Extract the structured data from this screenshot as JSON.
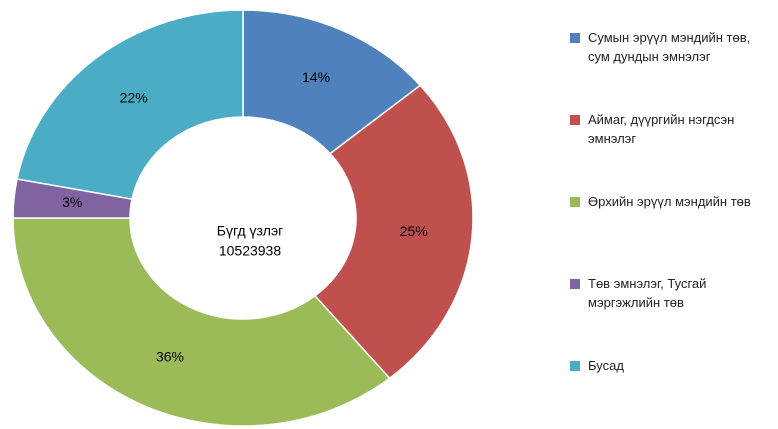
{
  "chart_data": {
    "type": "donut",
    "categories": [
      "Сумын эрүүл мэндийн төв, сум дундын эмнэлэг",
      "Аймаг, дүүргийн нэгдсэн эмнэлэг",
      "Өрхийн эрүүл мэндийн төв",
      "Төв эмнэлэг, Тусгай мэргэжлийн төв",
      "Бусад"
    ],
    "values": [
      14,
      25,
      36,
      3,
      22
    ],
    "value_labels": [
      "14%",
      "25%",
      "36%",
      "3%",
      "22%"
    ],
    "colors": [
      "#4f81bd",
      "#c0504d",
      "#9bbb59",
      "#8064a2",
      "#4bacc6"
    ],
    "center_label": "Бүгд үзлэг",
    "total": 10523938,
    "legend": "right"
  }
}
